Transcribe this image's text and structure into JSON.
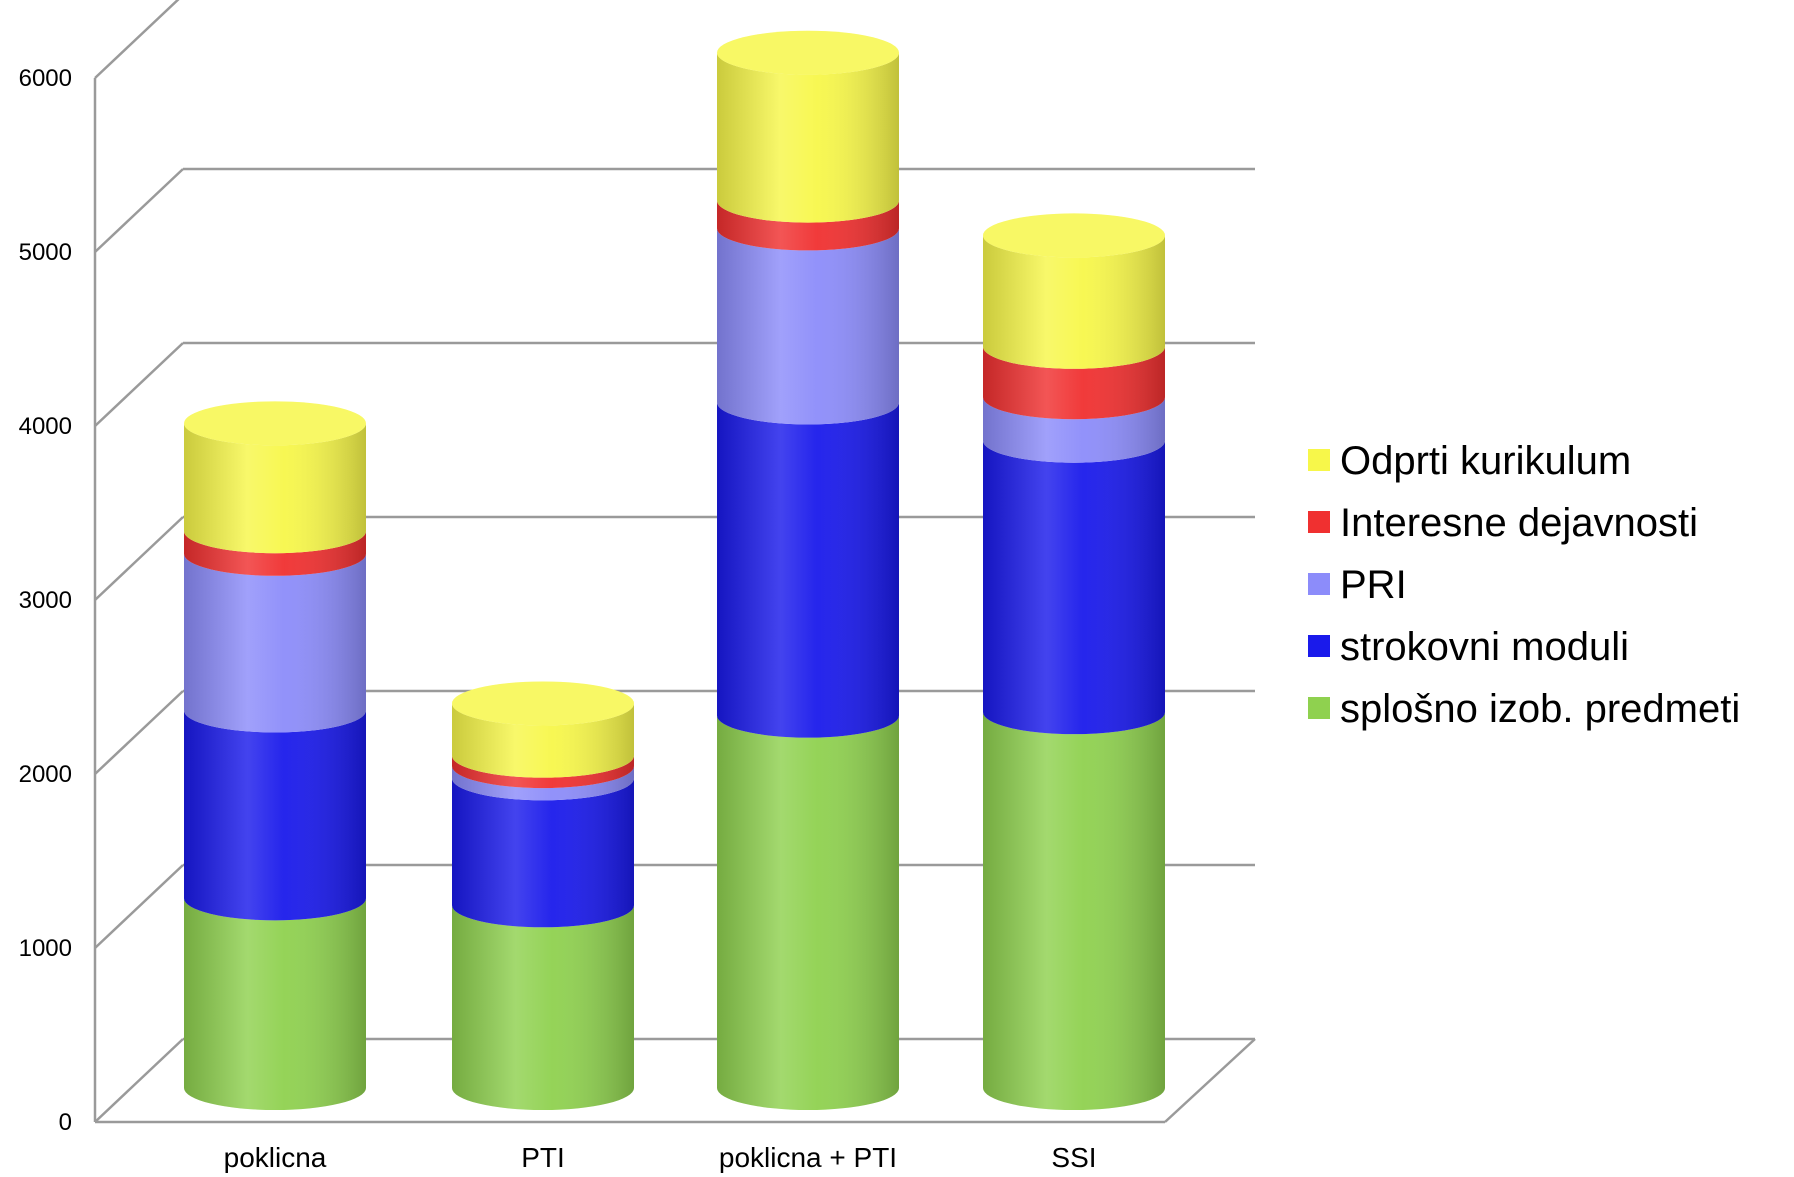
{
  "chart_data": {
    "type": "bar",
    "stacked": true,
    "style": "3d-cylinder",
    "title": "",
    "xlabel": "",
    "ylabel": "",
    "ylim": [
      0,
      6000
    ],
    "yticks": [
      "0",
      "1000",
      "2000",
      "3000",
      "4000",
      "5000",
      "6000"
    ],
    "grid": true,
    "legend": "right",
    "categories": [
      "poklicna",
      "PTI",
      "poklicna + PTI",
      "SSI"
    ],
    "series": [
      {
        "name": "splošno  izob.  predmeti",
        "color": "#8fd14f",
        "values": [
          1090,
          1050,
          2140,
          2160
        ]
      },
      {
        "name": "strokovni moduli",
        "color": "#1a1aeb",
        "values": [
          1080,
          730,
          1800,
          1560
        ]
      },
      {
        "name": "PRI",
        "color": "#8c8cfa",
        "values": [
          900,
          70,
          1000,
          250
        ]
      },
      {
        "name": "Interesne dejavnosti",
        "color": "#f03030",
        "values": [
          130,
          60,
          160,
          290
        ]
      },
      {
        "name": "Odprti kurikulum",
        "color": "#f7f74a",
        "values": [
          620,
          300,
          850,
          640
        ]
      }
    ]
  }
}
